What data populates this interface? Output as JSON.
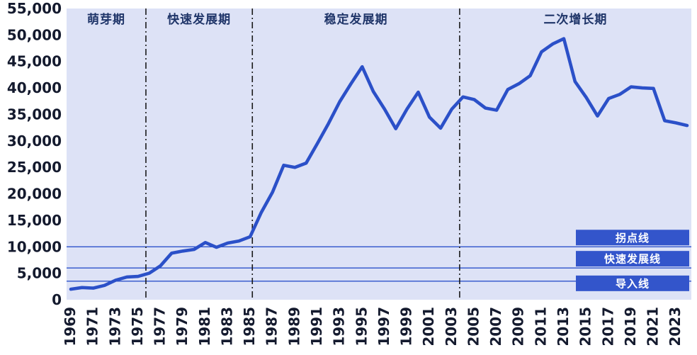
{
  "chart_data": {
    "type": "line",
    "title": "",
    "xlabel": "",
    "ylabel": "",
    "ylim": [
      0,
      55000
    ],
    "grid": "off",
    "legend": "none",
    "x_years": [
      1969,
      1970,
      1971,
      1972,
      1973,
      1974,
      1975,
      1976,
      1977,
      1978,
      1979,
      1980,
      1981,
      1982,
      1983,
      1984,
      1985,
      1986,
      1987,
      1988,
      1989,
      1990,
      1991,
      1992,
      1993,
      1994,
      1995,
      1996,
      1997,
      1998,
      1999,
      2000,
      2001,
      2002,
      2003,
      2004,
      2005,
      2006,
      2007,
      2008,
      2009,
      2010,
      2011,
      2012,
      2013,
      2014,
      2015,
      2016,
      2017,
      2018,
      2019,
      2020,
      2021,
      2022,
      2023,
      2024
    ],
    "x_tick_labels": [
      "1969",
      "1971",
      "1973",
      "1975",
      "1977",
      "1979",
      "1981",
      "1983",
      "1985",
      "1987",
      "1989",
      "1991",
      "1993",
      "1995",
      "1997",
      "1999",
      "2001",
      "2003",
      "2005",
      "2007",
      "2009",
      "2011",
      "2013",
      "2015",
      "2017",
      "2019",
      "2021",
      "2023"
    ],
    "y_ticks": [
      0,
      5000,
      10000,
      15000,
      20000,
      25000,
      30000,
      35000,
      40000,
      45000,
      50000,
      55000
    ],
    "y_tick_labels": [
      "0",
      "5,000",
      "10,000",
      "15,000",
      "20,000",
      "25,000",
      "30,000",
      "35,000",
      "40,000",
      "45,000",
      "50,000",
      "55,000"
    ],
    "series": [
      {
        "name": "",
        "values": [
          2000,
          2300,
          2200,
          2700,
          3700,
          4300,
          4400,
          5000,
          6400,
          8800,
          9200,
          9500,
          10800,
          9900,
          10700,
          11100,
          11900,
          16500,
          20300,
          25400,
          25000,
          25800,
          29500,
          33300,
          37400,
          40800,
          44000,
          39300,
          36000,
          32300,
          36000,
          39200,
          34500,
          32400,
          36000,
          38300,
          37800,
          36200,
          35800,
          39700,
          40800,
          42300,
          46800,
          48300,
          49300,
          41200,
          38200,
          34700,
          38000,
          38800,
          40200,
          40000,
          39900,
          33800,
          33400,
          32900
        ]
      }
    ],
    "phases": [
      {
        "label": "萌芽期",
        "start_year": 1969,
        "end_year": 1975.7
      },
      {
        "label": "快速发展期",
        "start_year": 1975.7,
        "end_year": 1985.2
      },
      {
        "label": "稳定发展期",
        "start_year": 1985.2,
        "end_year": 2003.7
      },
      {
        "label": "二次增长期",
        "start_year": 2003.7,
        "end_year": 2024
      }
    ],
    "phase_boundaries": [
      1975.7,
      1985.2,
      2003.7
    ],
    "reference_lines": [
      {
        "label": "拐点线",
        "value": 10000,
        "label_position": "above"
      },
      {
        "label": "快速发展线",
        "value": 6000,
        "label_position": "above"
      },
      {
        "label": "导入线",
        "value": 3500,
        "label_position": "straddle"
      }
    ],
    "colors": {
      "plot_bg": "#dde2f6",
      "line": "#2b50c8",
      "ref_line": "#2d53cb",
      "box_bg": "#3355cb",
      "box_text": "#ffffff",
      "axis_text": "#141a2e",
      "phase_text": "#1f3569",
      "divider": "#1a1a1a"
    }
  }
}
